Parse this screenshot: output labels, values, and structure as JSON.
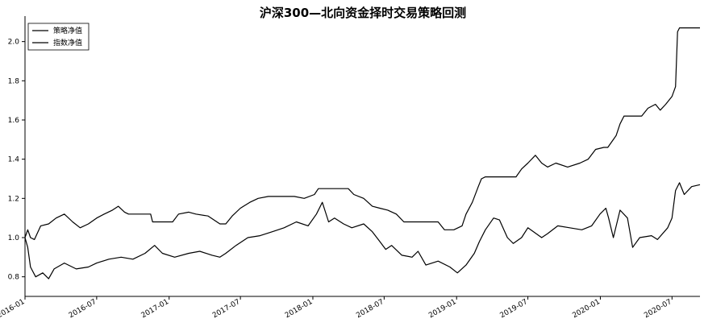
{
  "chart_data": {
    "type": "line",
    "title": "沪深300—北向资金择时交易策略回测",
    "xlabel": "",
    "ylabel": "",
    "x_start": "2016-01",
    "x_end": "2020-09",
    "ylim": [
      0.7,
      2.13
    ],
    "grid": false,
    "legend_position": "top-left",
    "x_tick_labels": [
      "2016-01",
      "2016-07",
      "2017-01",
      "2017-07",
      "2018-01",
      "2018-07",
      "2019-01",
      "2019-07",
      "2020-01",
      "2020-07"
    ],
    "y_tick_labels": [
      "0.8",
      "1.0",
      "1.2",
      "1.4",
      "1.6",
      "1.8",
      "2.0"
    ],
    "y_tick_values": [
      0.8,
      1.0,
      1.2,
      1.4,
      1.6,
      1.8,
      2.0
    ],
    "series": [
      {
        "name": "策略净值",
        "color": "#000000",
        "points": [
          [
            "2016-01-01",
            1.0
          ],
          [
            "2016-01-08",
            1.04
          ],
          [
            "2016-01-15",
            1.0
          ],
          [
            "2016-01-25",
            0.99
          ],
          [
            "2016-02-10",
            1.06
          ],
          [
            "2016-03-01",
            1.07
          ],
          [
            "2016-03-20",
            1.1
          ],
          [
            "2016-04-10",
            1.12
          ],
          [
            "2016-05-01",
            1.08
          ],
          [
            "2016-05-20",
            1.05
          ],
          [
            "2016-06-10",
            1.07
          ],
          [
            "2016-07-01",
            1.1
          ],
          [
            "2016-07-20",
            1.12
          ],
          [
            "2016-08-10",
            1.14
          ],
          [
            "2016-08-25",
            1.16
          ],
          [
            "2016-09-10",
            1.13
          ],
          [
            "2016-09-20",
            1.12
          ],
          [
            "2016-10-20",
            1.12
          ],
          [
            "2016-11-15",
            1.12
          ],
          [
            "2016-11-20",
            1.08
          ],
          [
            "2017-01-10",
            1.08
          ],
          [
            "2017-01-25",
            1.12
          ],
          [
            "2017-02-20",
            1.13
          ],
          [
            "2017-03-10",
            1.12
          ],
          [
            "2017-04-10",
            1.11
          ],
          [
            "2017-05-10",
            1.07
          ],
          [
            "2017-05-25",
            1.07
          ],
          [
            "2017-06-10",
            1.11
          ],
          [
            "2017-07-01",
            1.15
          ],
          [
            "2017-07-25",
            1.18
          ],
          [
            "2017-08-15",
            1.2
          ],
          [
            "2017-09-10",
            1.21
          ],
          [
            "2017-10-15",
            1.21
          ],
          [
            "2017-11-15",
            1.21
          ],
          [
            "2017-12-10",
            1.2
          ],
          [
            "2018-01-05",
            1.22
          ],
          [
            "2018-01-15",
            1.25
          ],
          [
            "2018-02-01",
            1.25
          ],
          [
            "2018-03-01",
            1.25
          ],
          [
            "2018-04-01",
            1.25
          ],
          [
            "2018-04-15",
            1.22
          ],
          [
            "2018-05-10",
            1.2
          ],
          [
            "2018-06-01",
            1.16
          ],
          [
            "2018-06-20",
            1.15
          ],
          [
            "2018-07-10",
            1.14
          ],
          [
            "2018-08-01",
            1.12
          ],
          [
            "2018-08-20",
            1.08
          ],
          [
            "2018-10-01",
            1.08
          ],
          [
            "2018-11-15",
            1.08
          ],
          [
            "2018-12-01",
            1.04
          ],
          [
            "2018-12-25",
            1.04
          ],
          [
            "2019-01-15",
            1.06
          ],
          [
            "2019-01-25",
            1.12
          ],
          [
            "2019-02-10",
            1.18
          ],
          [
            "2019-02-25",
            1.26
          ],
          [
            "2019-03-05",
            1.3
          ],
          [
            "2019-03-15",
            1.31
          ],
          [
            "2019-04-01",
            1.31
          ],
          [
            "2019-05-01",
            1.31
          ],
          [
            "2019-06-01",
            1.31
          ],
          [
            "2019-06-15",
            1.35
          ],
          [
            "2019-07-01",
            1.38
          ],
          [
            "2019-07-20",
            1.42
          ],
          [
            "2019-08-05",
            1.38
          ],
          [
            "2019-08-20",
            1.36
          ],
          [
            "2019-09-10",
            1.38
          ],
          [
            "2019-10-10",
            1.36
          ],
          [
            "2019-11-10",
            1.38
          ],
          [
            "2019-12-01",
            1.4
          ],
          [
            "2019-12-20",
            1.45
          ],
          [
            "2020-01-10",
            1.46
          ],
          [
            "2020-01-20",
            1.46
          ],
          [
            "2020-02-10",
            1.52
          ],
          [
            "2020-02-20",
            1.58
          ],
          [
            "2020-03-01",
            1.62
          ],
          [
            "2020-03-15",
            1.62
          ],
          [
            "2020-04-15",
            1.62
          ],
          [
            "2020-05-01",
            1.66
          ],
          [
            "2020-05-20",
            1.68
          ],
          [
            "2020-06-01",
            1.65
          ],
          [
            "2020-06-15",
            1.68
          ],
          [
            "2020-07-01",
            1.72
          ],
          [
            "2020-07-10",
            1.77
          ],
          [
            "2020-07-15",
            2.05
          ],
          [
            "2020-07-20",
            2.07
          ],
          [
            "2020-08-15",
            2.07
          ],
          [
            "2020-09-10",
            2.07
          ]
        ]
      },
      {
        "name": "指数净值",
        "color": "#000000",
        "points": [
          [
            "2016-01-01",
            1.0
          ],
          [
            "2016-01-08",
            0.95
          ],
          [
            "2016-01-15",
            0.85
          ],
          [
            "2016-01-28",
            0.8
          ],
          [
            "2016-02-15",
            0.82
          ],
          [
            "2016-03-01",
            0.79
          ],
          [
            "2016-03-15",
            0.84
          ],
          [
            "2016-04-10",
            0.87
          ],
          [
            "2016-05-10",
            0.84
          ],
          [
            "2016-06-10",
            0.85
          ],
          [
            "2016-07-01",
            0.87
          ],
          [
            "2016-08-01",
            0.89
          ],
          [
            "2016-09-01",
            0.9
          ],
          [
            "2016-10-01",
            0.89
          ],
          [
            "2016-11-01",
            0.92
          ],
          [
            "2016-11-25",
            0.96
          ],
          [
            "2016-12-15",
            0.92
          ],
          [
            "2017-01-15",
            0.9
          ],
          [
            "2017-02-20",
            0.92
          ],
          [
            "2017-03-20",
            0.93
          ],
          [
            "2017-04-20",
            0.91
          ],
          [
            "2017-05-10",
            0.9
          ],
          [
            "2017-05-25",
            0.92
          ],
          [
            "2017-06-20",
            0.96
          ],
          [
            "2017-07-20",
            1.0
          ],
          [
            "2017-08-20",
            1.01
          ],
          [
            "2017-09-20",
            1.03
          ],
          [
            "2017-10-20",
            1.05
          ],
          [
            "2017-11-20",
            1.08
          ],
          [
            "2017-12-20",
            1.06
          ],
          [
            "2018-01-10",
            1.12
          ],
          [
            "2018-01-25",
            1.18
          ],
          [
            "2018-02-10",
            1.08
          ],
          [
            "2018-02-25",
            1.1
          ],
          [
            "2018-03-20",
            1.07
          ],
          [
            "2018-04-10",
            1.05
          ],
          [
            "2018-05-10",
            1.07
          ],
          [
            "2018-06-01",
            1.03
          ],
          [
            "2018-06-20",
            0.98
          ],
          [
            "2018-07-05",
            0.94
          ],
          [
            "2018-07-20",
            0.96
          ],
          [
            "2018-08-15",
            0.91
          ],
          [
            "2018-09-10",
            0.9
          ],
          [
            "2018-09-25",
            0.93
          ],
          [
            "2018-10-15",
            0.86
          ],
          [
            "2018-11-15",
            0.88
          ],
          [
            "2018-12-15",
            0.85
          ],
          [
            "2019-01-03",
            0.82
          ],
          [
            "2019-01-25",
            0.86
          ],
          [
            "2019-02-15",
            0.92
          ],
          [
            "2019-02-28",
            0.98
          ],
          [
            "2019-03-15",
            1.04
          ],
          [
            "2019-04-05",
            1.1
          ],
          [
            "2019-04-20",
            1.09
          ],
          [
            "2019-05-10",
            1.0
          ],
          [
            "2019-05-25",
            0.97
          ],
          [
            "2019-06-15",
            1.0
          ],
          [
            "2019-07-01",
            1.05
          ],
          [
            "2019-08-05",
            1.0
          ],
          [
            "2019-08-20",
            1.02
          ],
          [
            "2019-09-15",
            1.06
          ],
          [
            "2019-10-15",
            1.05
          ],
          [
            "2019-11-15",
            1.04
          ],
          [
            "2019-12-10",
            1.06
          ],
          [
            "2019-12-31",
            1.12
          ],
          [
            "2020-01-15",
            1.15
          ],
          [
            "2020-01-22",
            1.1
          ],
          [
            "2020-02-03",
            1.0
          ],
          [
            "2020-02-20",
            1.14
          ],
          [
            "2020-03-10",
            1.1
          ],
          [
            "2020-03-23",
            0.95
          ],
          [
            "2020-04-10",
            1.0
          ],
          [
            "2020-05-10",
            1.01
          ],
          [
            "2020-05-25",
            0.99
          ],
          [
            "2020-06-20",
            1.05
          ],
          [
            "2020-07-01",
            1.1
          ],
          [
            "2020-07-10",
            1.24
          ],
          [
            "2020-07-20",
            1.28
          ],
          [
            "2020-08-01",
            1.22
          ],
          [
            "2020-08-20",
            1.26
          ],
          [
            "2020-09-10",
            1.27
          ]
        ]
      }
    ]
  }
}
